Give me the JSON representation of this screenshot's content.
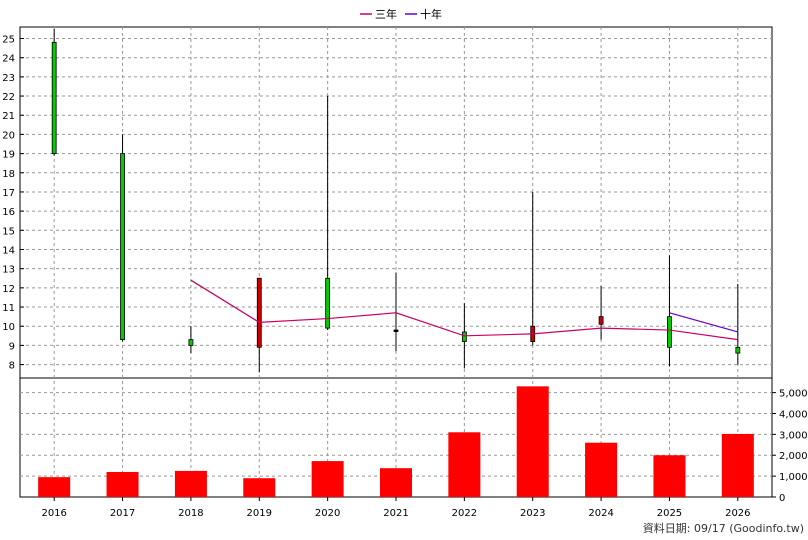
{
  "chart_data": {
    "type": "candlestick+line+bar",
    "legend": {
      "placement": "top-center",
      "entries": [
        {
          "name": "三年",
          "color": "#cc0066"
        },
        {
          "name": "十年",
          "color": "#6600cc"
        }
      ]
    },
    "x_categories": [
      "2016",
      "2017",
      "2018",
      "2019",
      "2020",
      "2021",
      "2022",
      "2023",
      "2024",
      "2025",
      "2026"
    ],
    "price": {
      "y_range": [
        7.3,
        25.6
      ],
      "y_ticks": [
        8,
        9,
        10,
        11,
        12,
        13,
        14,
        15,
        16,
        17,
        18,
        19,
        20,
        21,
        22,
        23,
        24,
        25
      ],
      "candles": [
        {
          "x": "2016",
          "open": 19.0,
          "close": 24.8,
          "high": 25.5,
          "low": 18.9,
          "color": "#00cc00"
        },
        {
          "x": "2017",
          "open": 9.3,
          "close": 19.0,
          "high": 20.0,
          "low": 9.2,
          "color": "#00cc00"
        },
        {
          "x": "2018",
          "open": 9.0,
          "close": 9.3,
          "high": 10.0,
          "low": 8.6,
          "color": "#00cc00"
        },
        {
          "x": "2019",
          "open": 12.5,
          "close": 8.9,
          "high": 12.5,
          "low": 7.6,
          "color": "#cc0000"
        },
        {
          "x": "2020",
          "open": 9.9,
          "close": 12.5,
          "high": 22.0,
          "low": 9.8,
          "color": "#00cc00"
        },
        {
          "x": "2021",
          "open": 9.8,
          "close": 9.8,
          "high": 12.8,
          "low": 8.7,
          "color": "#000000"
        },
        {
          "x": "2022",
          "open": 9.2,
          "close": 9.7,
          "high": 11.2,
          "low": 7.8,
          "color": "#00cc00"
        },
        {
          "x": "2023",
          "open": 10.0,
          "close": 9.2,
          "high": 17.0,
          "low": 9.0,
          "color": "#cc0000"
        },
        {
          "x": "2024",
          "open": 10.5,
          "close": 10.1,
          "high": 12.1,
          "low": 9.3,
          "color": "#cc0000"
        },
        {
          "x": "2025",
          "open": 8.9,
          "close": 10.5,
          "high": 13.7,
          "low": 7.9,
          "color": "#00cc00"
        },
        {
          "x": "2026",
          "open": 8.6,
          "close": 8.9,
          "high": 12.2,
          "low": 8.0,
          "color": "#00cc00"
        }
      ],
      "series": [
        {
          "name": "三年",
          "color": "#cc0066",
          "points": [
            [
              "2018",
              12.4
            ],
            [
              "2019",
              10.2
            ],
            [
              "2020",
              10.4
            ],
            [
              "2021",
              10.7
            ],
            [
              "2022",
              9.5
            ],
            [
              "2023",
              9.6
            ],
            [
              "2024",
              9.9
            ],
            [
              "2025",
              9.8
            ],
            [
              "2026",
              9.3
            ]
          ]
        },
        {
          "name": "十年",
          "color": "#6600cc",
          "points": [
            [
              "2025",
              10.7
            ],
            [
              "2026",
              9.7
            ]
          ]
        }
      ]
    },
    "volume": {
      "y_range": [
        0,
        5700
      ],
      "y_ticks": [
        0,
        1000,
        2000,
        3000,
        4000,
        5000
      ],
      "y_tick_labels": [
        "0",
        "1,000",
        "2,000",
        "3,000",
        "4,000",
        "5,000"
      ],
      "bar_color": "#ff0000",
      "values": [
        950,
        1200,
        1250,
        900,
        1720,
        1380,
        3100,
        5300,
        2600,
        2000,
        3020
      ]
    },
    "grid": true
  },
  "footer": {
    "text": "資料日期: 09/17 (Goodinfo.tw)"
  }
}
